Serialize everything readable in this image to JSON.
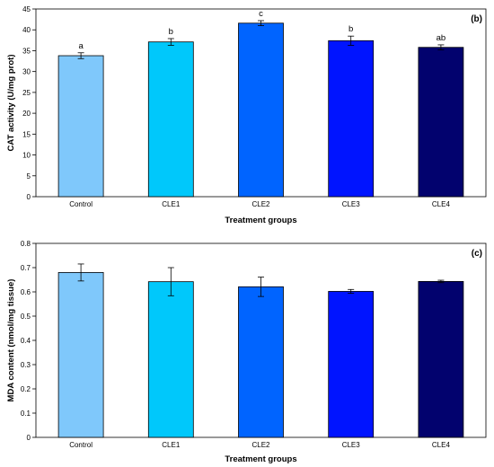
{
  "chart_data": [
    {
      "type": "bar",
      "panel": "(b)",
      "categories": [
        "Control",
        "CLE1",
        "CLE2",
        "CLE3",
        "CLE4"
      ],
      "values": [
        33.8,
        37.1,
        41.6,
        37.4,
        35.8
      ],
      "errors": [
        0.7,
        0.8,
        0.6,
        1.1,
        0.6
      ],
      "significance": [
        "a",
        "b",
        "c",
        "b",
        "ab"
      ],
      "colors": [
        "#7fc8fb",
        "#00c8fb",
        "#0064ff",
        "#0014ff",
        "#02026e"
      ],
      "xlabel": "Treatment groups",
      "ylabel": "CAT activity (U/mg prot)",
      "ylim": [
        0,
        45
      ],
      "yticks": [
        "0",
        "5",
        "10",
        "15",
        "20",
        "25",
        "30",
        "35",
        "40",
        "45"
      ],
      "grid": false,
      "legend": "none"
    },
    {
      "type": "bar",
      "panel": "(c)",
      "categories": [
        "Control",
        "CLE1",
        "CLE2",
        "CLE3",
        "CLE4"
      ],
      "values": [
        0.68,
        0.642,
        0.621,
        0.602,
        0.643
      ],
      "errors": [
        0.035,
        0.058,
        0.04,
        0.008,
        0.005
      ],
      "colors": [
        "#7fc8fb",
        "#00c8fb",
        "#0064ff",
        "#0014ff",
        "#02026e"
      ],
      "xlabel": "Treatment groups",
      "ylabel": "MDA content (nmol/mg tissue)",
      "ylim": [
        0,
        0.8
      ],
      "yticks": [
        "0",
        "0.1",
        "0.2",
        "0.3",
        "0.4",
        "0.5",
        "0.6",
        "0.7",
        "0.8"
      ],
      "grid": false,
      "legend": "none"
    }
  ]
}
